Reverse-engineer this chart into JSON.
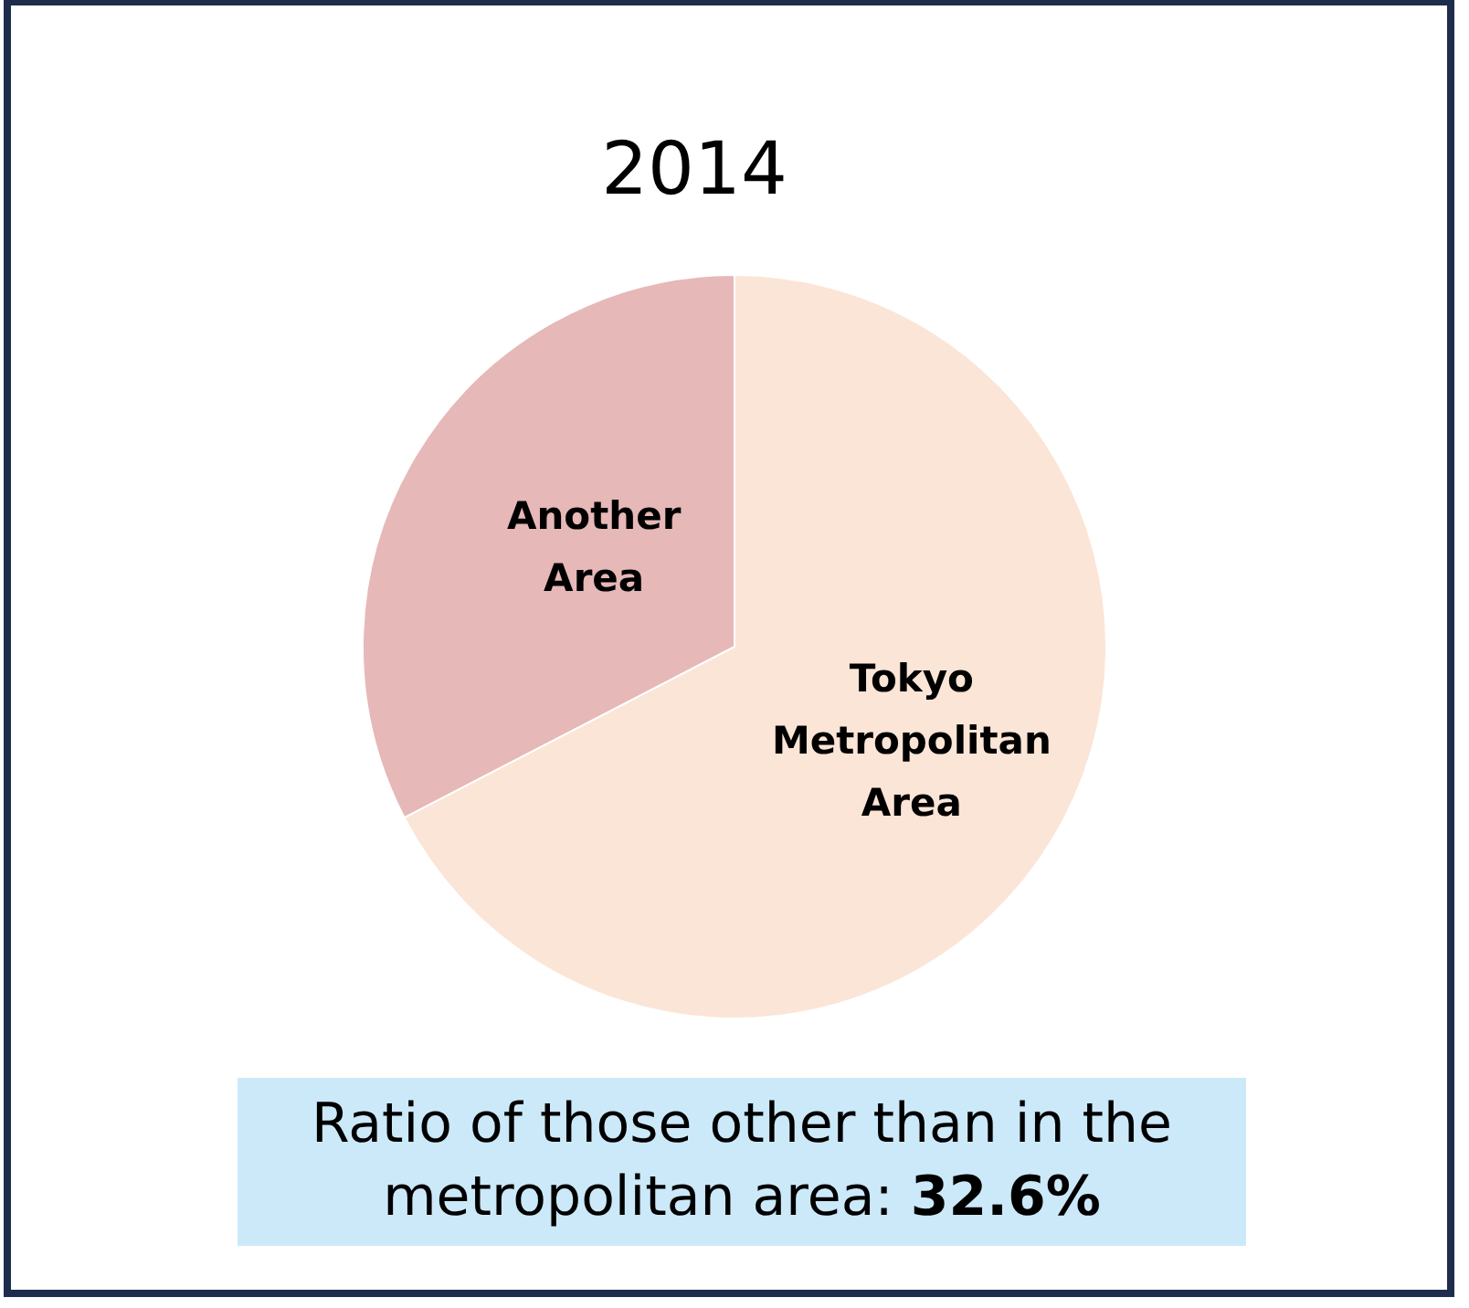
{
  "chart_data": {
    "type": "pie",
    "title": "2014",
    "categories": [
      "Tokyo\nMetropolitan\nArea",
      "Another\nArea"
    ],
    "values": [
      67.4,
      32.6
    ],
    "colors": [
      "#fbe5d6",
      "#e6b8b7"
    ],
    "legend": false,
    "annotations": [
      "Ratio of those other than in the metropolitan area: 32.6%"
    ]
  }
}
